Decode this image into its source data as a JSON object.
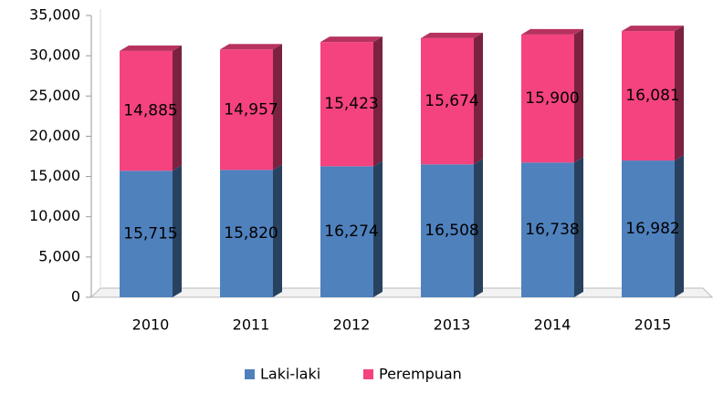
{
  "chart_data": {
    "type": "bar",
    "stacked": true,
    "categories": [
      "2010",
      "2011",
      "2012",
      "2013",
      "2014",
      "2015"
    ],
    "series": [
      {
        "name": "Laki-laki",
        "color": "#4f81bd",
        "values": [
          15715,
          15820,
          16274,
          16508,
          16738,
          16982
        ],
        "value_labels": [
          "15,715",
          "15,820",
          "16,274",
          "16,508",
          "16,738",
          "16,982"
        ]
      },
      {
        "name": "Perempuan",
        "color": "#f4437f",
        "values": [
          14885,
          14957,
          15423,
          15674,
          15900,
          16081
        ],
        "value_labels": [
          "14,885",
          "14,957",
          "15,423",
          "15,674",
          "15,900",
          "16,081"
        ]
      }
    ],
    "ylim": [
      0,
      35000
    ],
    "yticks": [
      0,
      {
        "value": 5000,
        "label": "5,000"
      },
      {
        "value": 10000,
        "label": "10,000"
      },
      {
        "value": 15000,
        "label": "15,000"
      },
      {
        "value": 20000,
        "label": "20,000"
      },
      {
        "value": 25000,
        "label": "25,000"
      },
      {
        "value": 30000,
        "label": "30,000"
      },
      {
        "value": 35000,
        "label": "35,000"
      }
    ],
    "legend": "bottom"
  }
}
